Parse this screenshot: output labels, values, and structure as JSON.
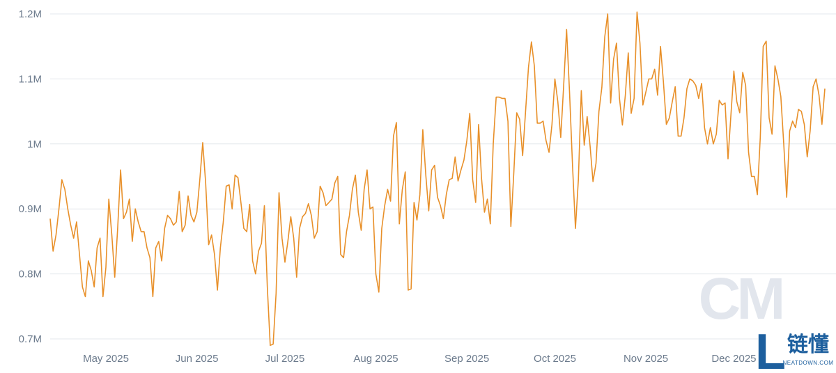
{
  "chart_data": {
    "type": "line",
    "title": "",
    "xlabel": "",
    "ylabel": "",
    "ylim": [
      700000,
      1200000
    ],
    "grid": true,
    "y_ticks": [
      {
        "value": 700000,
        "label": "0.7M"
      },
      {
        "value": 800000,
        "label": "0.8M"
      },
      {
        "value": 900000,
        "label": "0.9M"
      },
      {
        "value": 1000000,
        "label": "1M"
      },
      {
        "value": 1100000,
        "label": "1.1M"
      },
      {
        "value": 1200000,
        "label": "1.2M"
      }
    ],
    "x_ticks": [
      {
        "day": 19,
        "label": "May 2025"
      },
      {
        "day": 50,
        "label": "Jun 2025"
      },
      {
        "day": 80,
        "label": "Jul 2025"
      },
      {
        "day": 111,
        "label": "Aug 2025"
      },
      {
        "day": 142,
        "label": "Sep 2025"
      },
      {
        "day": 172,
        "label": "Oct 2025"
      },
      {
        "day": 203,
        "label": "Nov 2025"
      },
      {
        "day": 233,
        "label": "Dec 2025"
      }
    ],
    "x_start_date": "2025-04-12",
    "series": [
      {
        "color": "#e8902a",
        "values": [
          885000,
          835000,
          860000,
          900000,
          945000,
          930000,
          900000,
          875000,
          855000,
          880000,
          830000,
          780000,
          765000,
          820000,
          805000,
          780000,
          840000,
          855000,
          765000,
          810000,
          915000,
          860000,
          795000,
          870000,
          960000,
          885000,
          895000,
          915000,
          850000,
          900000,
          880000,
          865000,
          865000,
          840000,
          825000,
          765000,
          840000,
          850000,
          820000,
          870000,
          890000,
          885000,
          875000,
          880000,
          927000,
          865000,
          875000,
          920000,
          890000,
          880000,
          895000,
          945000,
          1002000,
          940000,
          845000,
          860000,
          830000,
          775000,
          840000,
          880000,
          935000,
          937000,
          900000,
          952000,
          948000,
          910000,
          870000,
          865000,
          907000,
          820000,
          800000,
          835000,
          847000,
          905000,
          780000,
          690000,
          692000,
          770000,
          925000,
          855000,
          818000,
          850000,
          888000,
          855000,
          795000,
          870000,
          888000,
          893000,
          908000,
          890000,
          855000,
          865000,
          935000,
          925000,
          905000,
          910000,
          915000,
          940000,
          950000,
          830000,
          825000,
          865000,
          890000,
          930000,
          952000,
          895000,
          867000,
          930000,
          960000,
          900000,
          903000,
          800000,
          772000,
          870000,
          905000,
          930000,
          912000,
          1012000,
          1033000,
          877000,
          930000,
          957000,
          775000,
          777000,
          910000,
          883000,
          922000,
          1022000,
          952000,
          897000,
          960000,
          967000,
          918000,
          905000,
          885000,
          922000,
          945000,
          947000,
          980000,
          943000,
          960000,
          975000,
          1005000,
          1047000,
          945000,
          910000,
          1030000,
          947000,
          895000,
          915000,
          877000,
          1000000,
          1072000,
          1072000,
          1070000,
          1070000,
          1035000,
          873000,
          955000,
          1048000,
          1038000,
          982000,
          1050000,
          1118000,
          1157000,
          1120000,
          1032000,
          1032000,
          1035000,
          1005000,
          987000,
          1030000,
          1100000,
          1065000,
          1010000,
          1090000,
          1176000,
          1080000,
          967000,
          870000,
          945000,
          1082000,
          998000,
          1042000,
          997000,
          942000,
          970000,
          1050000,
          1087000,
          1165000,
          1200000,
          1063000,
          1130000,
          1155000,
          1070000,
          1029000,
          1075000,
          1140000,
          1047000,
          1070000,
          1203000,
          1155000,
          1060000,
          1080000,
          1100000,
          1100000,
          1115000,
          1075000,
          1150000,
          1095000,
          1030000,
          1040000,
          1065000,
          1088000,
          1012000,
          1012000,
          1040000,
          1085000,
          1100000,
          1097000,
          1090000,
          1070000,
          1093000,
          1025000,
          1000000,
          1025000,
          1000000,
          1015000,
          1067000,
          1060000,
          1063000,
          977000,
          1045000,
          1112000,
          1065000,
          1048000,
          1110000,
          1090000,
          987000,
          950000,
          950000,
          922000,
          1010000,
          1150000,
          1158000,
          1040000,
          1015000,
          1120000,
          1100000,
          1073000,
          1000000,
          918000,
          1020000,
          1035000,
          1025000,
          1053000,
          1050000,
          1030000,
          980000,
          1020000,
          1088000,
          1100000,
          1075000,
          1030000,
          1085000
        ]
      }
    ]
  },
  "watermark": {
    "mark": "CM",
    "brand_cn": "链懂",
    "brand_en": "NEATDOWN.COM",
    "brand_letter": "L"
  }
}
